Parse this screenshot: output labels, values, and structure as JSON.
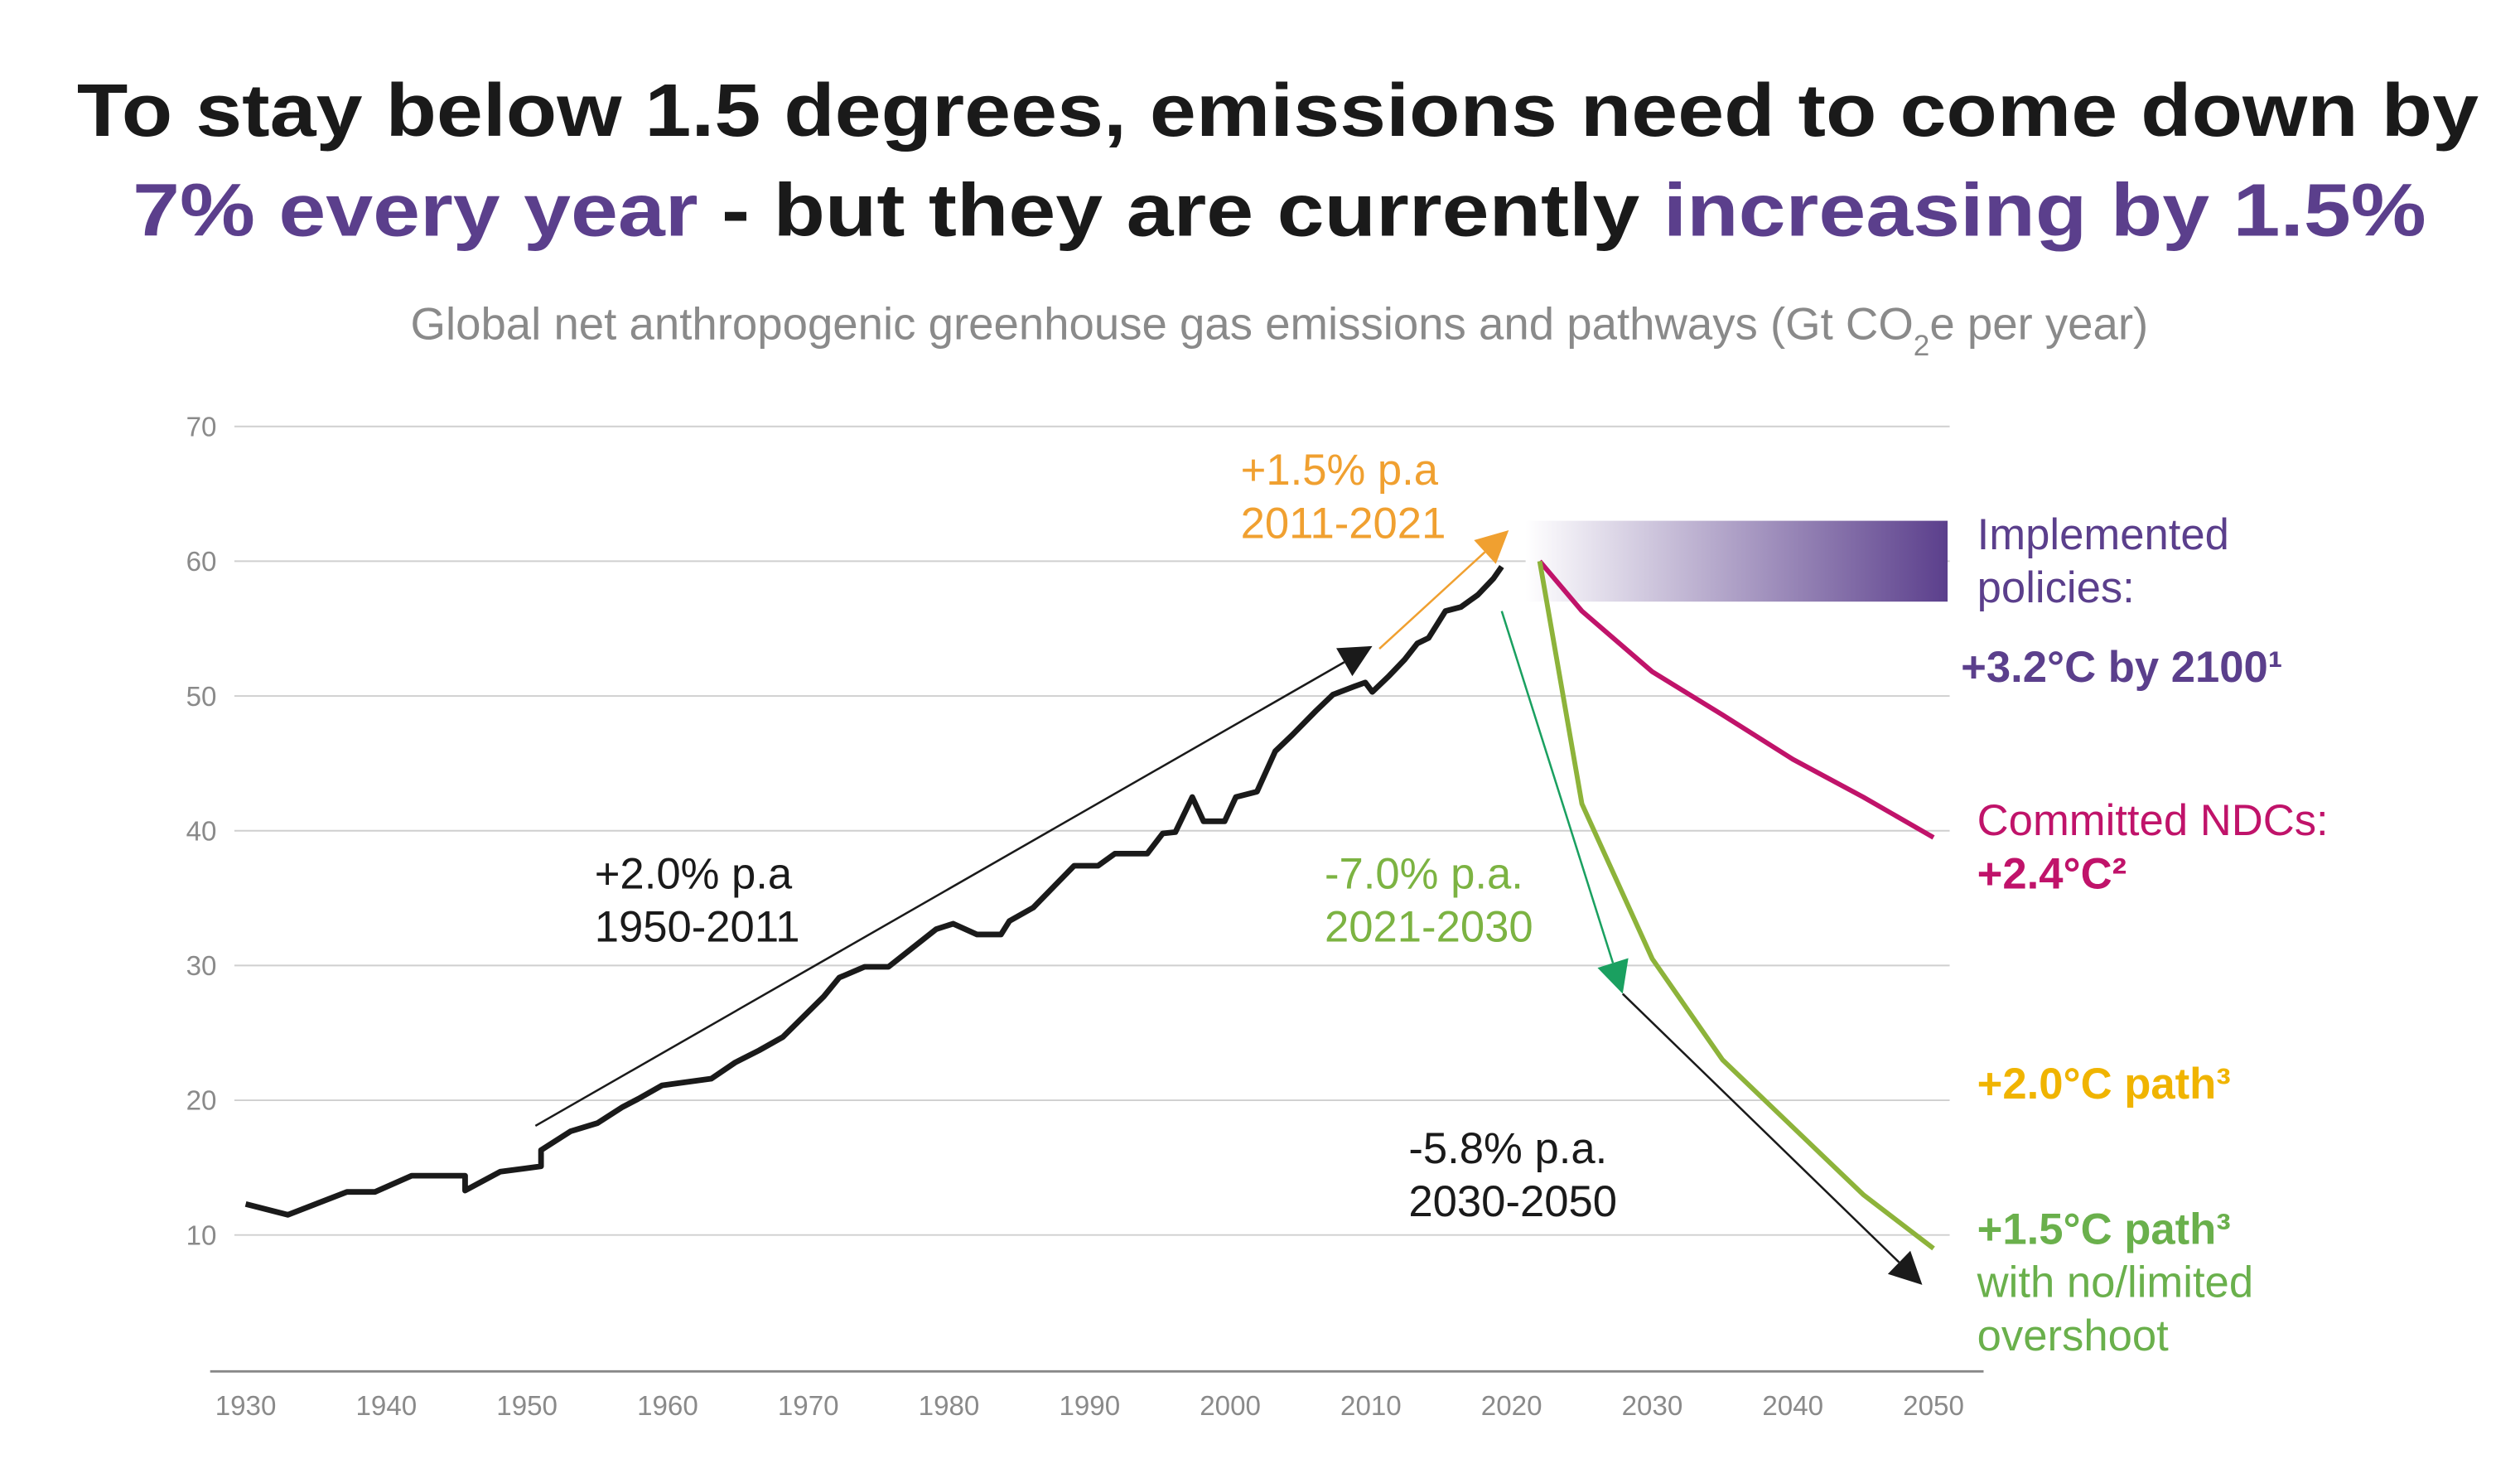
{
  "chart_data": {
    "type": "line",
    "title": {
      "line1": "To stay below 1.5 degrees, emissions need to come down by",
      "line2": [
        "7% every year",
        " - but they are currently ",
        "increasing by 1.5%"
      ]
    },
    "subtitle": [
      "Global net anthropogenic greenhouse gas emissions and pathways (Gt CO",
      "2",
      "e per year)"
    ],
    "xlim": [
      1930,
      2050
    ],
    "xticks": [
      1930,
      1940,
      1950,
      1960,
      1970,
      1980,
      1990,
      2000,
      2010,
      2020,
      2030,
      2040,
      2050
    ],
    "ylim": [
      0,
      70
    ],
    "yticks": [
      10,
      20,
      30,
      40,
      50,
      60,
      70
    ],
    "grid": true,
    "series": [
      {
        "name": "Historical emissions",
        "color": "#1a1a1a",
        "x": [
          1930,
          1933,
          1937.2,
          1939.2,
          1941.8,
          1945.6,
          1945.6,
          1948.1,
          1951,
          1951,
          1953.1,
          1955,
          1956.8,
          1957.9,
          1959.6,
          1963.1,
          1964.8,
          1966.5,
          1968.2,
          1971.1,
          1972.2,
          1974,
          1975.7,
          1979.1,
          1980.3,
          1982,
          1983.7,
          1984.3,
          1986,
          1988.9,
          1990.6,
          1991.8,
          1994.1,
          1995.2,
          1996.1,
          1997.3,
          1998.1,
          1999.6,
          2000.4,
          2001.9,
          2003.2,
          2004.4,
          2006.1,
          2007.3,
          2008.8,
          2009.6,
          2010.1,
          2011.3,
          2012.4,
          2013.3,
          2014.1,
          2015.3,
          2016.4,
          2017.6,
          2018.7,
          2019.3
        ],
        "values": [
          12.3,
          11.5,
          13.2,
          13.2,
          14.4,
          14.4,
          13.3,
          14.7,
          15.1,
          16.3,
          17.7,
          18.3,
          19.5,
          20.1,
          21.1,
          21.6,
          22.8,
          23.7,
          24.7,
          27.7,
          29.1,
          29.9,
          29.9,
          32.7,
          33.1,
          32.3,
          32.3,
          33.3,
          34.3,
          37.4,
          37.4,
          38.3,
          38.3,
          39.8,
          39.9,
          42.5,
          40.7,
          40.7,
          42.5,
          42.9,
          45.9,
          47.1,
          48.9,
          50.1,
          50.7,
          51,
          50.3,
          51.5,
          52.7,
          53.9,
          54.3,
          56.3,
          56.6,
          57.5,
          58.7,
          59.6
        ]
      },
      {
        "name": "Committed NDCs",
        "color": "#c0136a",
        "x": [
          2022,
          2025,
          2030,
          2035,
          2040,
          2045,
          2050
        ],
        "values": [
          60,
          56.3,
          51.8,
          48.6,
          45.3,
          42.5,
          39.5
        ]
      },
      {
        "name": "+1.5°C path",
        "color": "#8db33a",
        "x": [
          2022,
          2025,
          2030,
          2035,
          2040,
          2045,
          2050
        ],
        "values": [
          60,
          42,
          30.5,
          23,
          18,
          13,
          9
        ]
      }
    ],
    "policy_band": {
      "from": 2021,
      "to": 2051,
      "low": 57,
      "high": 63,
      "color": "#5b3f8c"
    },
    "arrows": [
      {
        "color": "#1a1a1a",
        "from": [
          1950.6,
          18.1
        ],
        "to": [
          2010.1,
          53.7
        ]
      },
      {
        "color": "#f0a030",
        "from": [
          2010.6,
          53.5
        ],
        "to": [
          2019.8,
          62.3
        ]
      },
      {
        "color": "#1aa060",
        "from": [
          2019.3,
          56.3
        ],
        "to": [
          2027.9,
          27.9
        ]
      },
      {
        "color": "#1a1a1a",
        "from": [
          2027.9,
          27.9
        ],
        "to": [
          2049.2,
          6.3
        ]
      }
    ],
    "annotations": [
      {
        "lines": [
          "+2.0% p.a",
          "1950-2011"
        ],
        "color": "#1a1a1a"
      },
      {
        "lines": [
          "+1.5% p.a",
          "2011-2021"
        ],
        "color": "#f0a030"
      },
      {
        "lines": [
          "-7.0% p.a.",
          "2021-2030"
        ],
        "color": "#7cb342"
      },
      {
        "lines": [
          "-5.8% p.a.",
          "2030-2050"
        ],
        "color": "#1a1a1a"
      }
    ],
    "labels": [
      {
        "text": "Implemented",
        "color": "#5b3f8c",
        "bold": false
      },
      {
        "text": "policies:",
        "color": "#5b3f8c",
        "bold": false
      },
      {
        "text": "+3.2°C by 2100¹",
        "color": "#5b3f8c",
        "bold": true
      },
      {
        "text": "Committed NDCs:",
        "color": "#c0136a",
        "bold": false
      },
      {
        "text": "+2.4°C²",
        "color": "#c0136a",
        "bold": true
      },
      {
        "text": "+2.0°C path³",
        "color": "#f0b400",
        "bold": true
      },
      {
        "text": "+1.5°C path³",
        "color": "#6ab04c",
        "bold": true
      },
      {
        "text": "with no/limited",
        "color": "#6ab04c",
        "bold": false
      },
      {
        "text": "overshoot",
        "color": "#6ab04c",
        "bold": false
      }
    ]
  }
}
